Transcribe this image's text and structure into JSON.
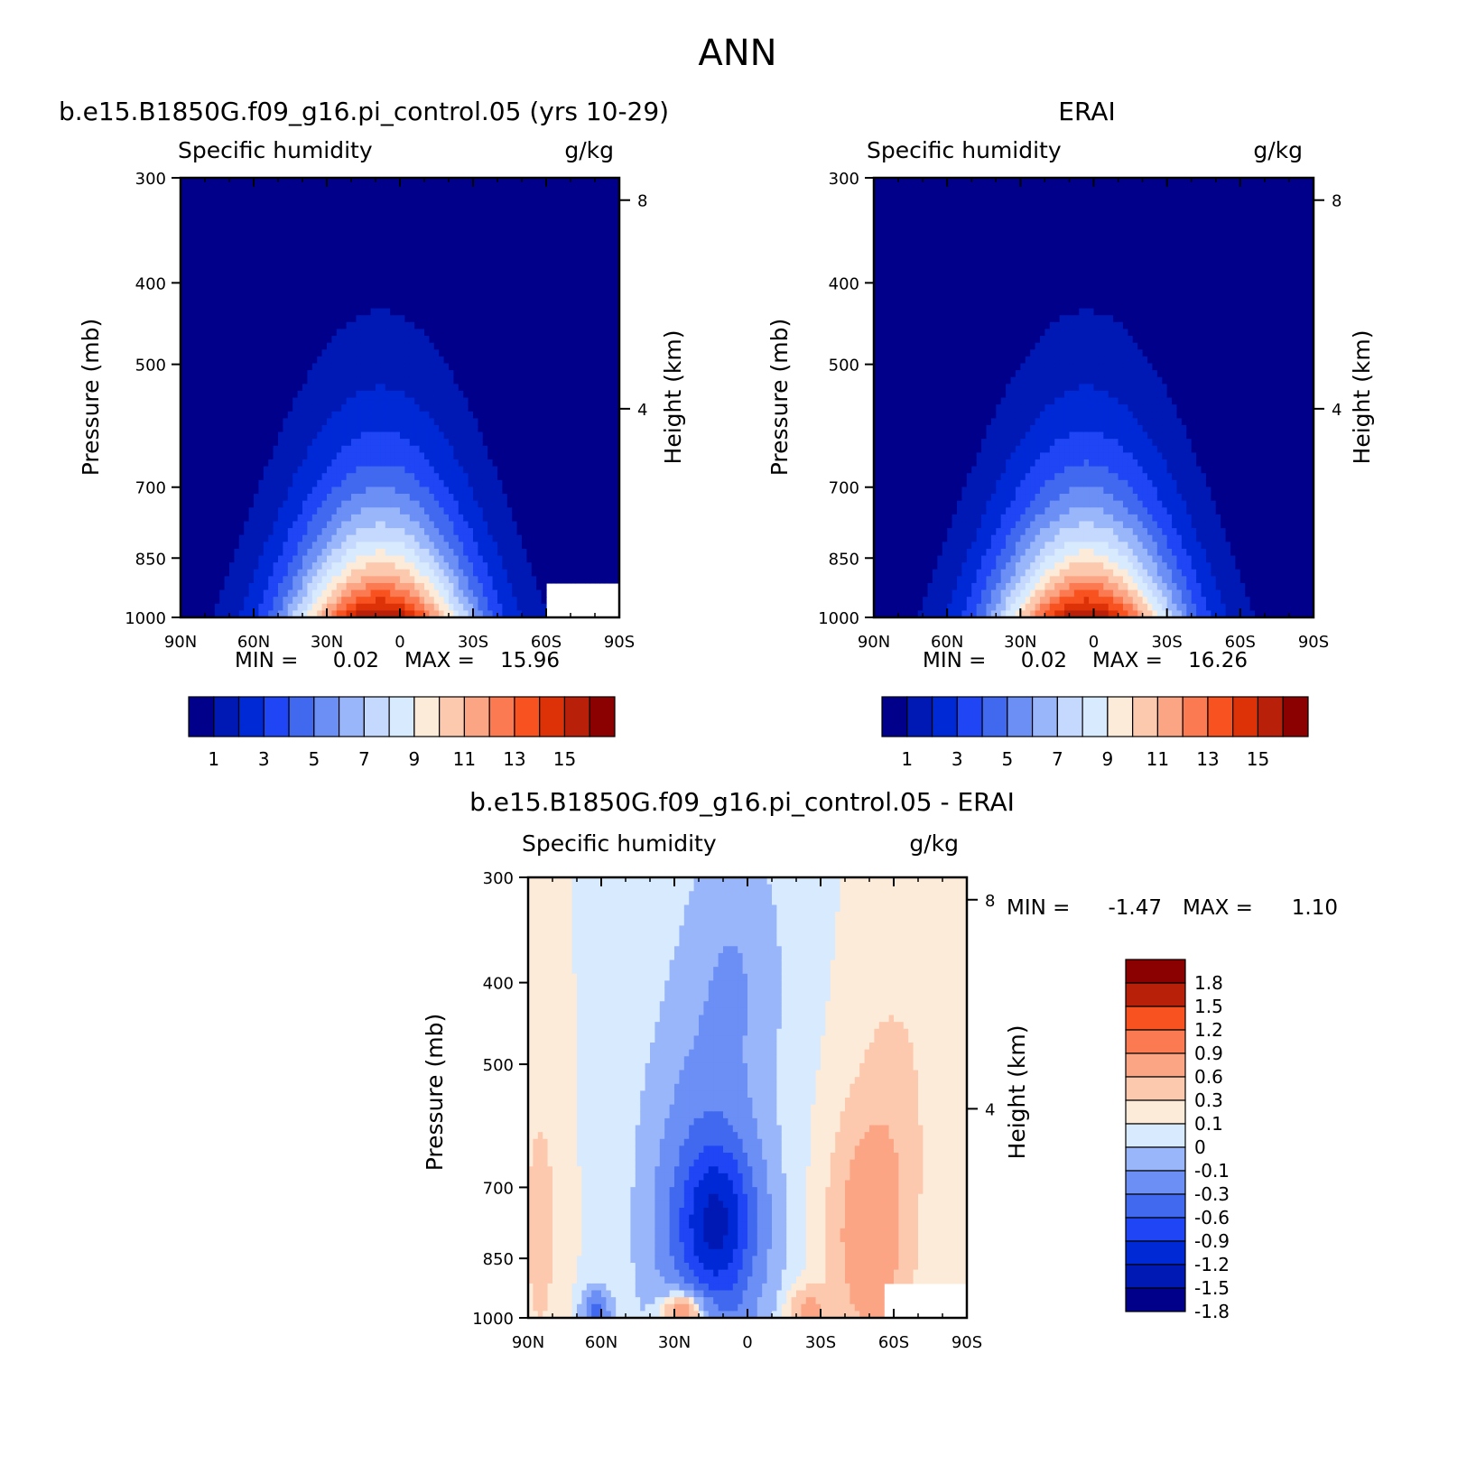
{
  "main_title": "ANN",
  "colors": {
    "abs_levels": [
      "#00008b",
      "#0018b4",
      "#0029d6",
      "#1f45f5",
      "#4169f0",
      "#6b8ff5",
      "#9ab6fb",
      "#c5d8fd",
      "#d8eafd",
      "#fdebd9",
      "#fdc9ae",
      "#fca585",
      "#fb7a51",
      "#f7521f",
      "#dd3208",
      "#b8200a",
      "#8b0000"
    ],
    "diff_levels": [
      "#00008b",
      "#0018b4",
      "#0029d6",
      "#1f45f5",
      "#4169f0",
      "#6b8ff5",
      "#9ab6fb",
      "#d8eafd",
      "#fdebd9",
      "#fdc9ae",
      "#fca585",
      "#fb7a51",
      "#f7521f",
      "#b8200a",
      "#8b0000"
    ]
  },
  "chart_data": [
    {
      "id": "model",
      "type": "heatmap",
      "title": "b.e15.B1850G.f09_g16.pi_control.05 (yrs 10-29)",
      "left_label": "Specific humidity",
      "right_label": "g/kg",
      "xlabel": "",
      "ylabel": "Pressure (mb)",
      "y2label": "Height (km)",
      "xticks": [
        "90N",
        "60N",
        "30N",
        "0",
        "30S",
        "60S",
        "90S"
      ],
      "xlim": [
        90,
        -90
      ],
      "yticks": [
        300,
        400,
        500,
        700,
        850,
        1000
      ],
      "ylim": [
        1000,
        300
      ],
      "yscale": "log",
      "y2ticks": [
        4,
        8
      ],
      "min_label": "MIN =",
      "min_value": "0.02",
      "max_label": "MAX =",
      "max_value": "15.96",
      "levels": [
        0,
        1,
        2,
        3,
        4,
        5,
        6,
        7,
        8,
        9,
        10,
        11,
        12,
        13,
        14,
        15,
        16
      ],
      "colorbar_labels": [
        "1",
        "3",
        "5",
        "7",
        "9",
        "11",
        "13",
        "15"
      ],
      "max_center_lat": 8,
      "peak_at_surface": 15.96,
      "missing_region": "60S-90S below 900 mb"
    },
    {
      "id": "obs",
      "type": "heatmap",
      "title": "ERAI",
      "left_label": "Specific humidity",
      "right_label": "g/kg",
      "xlabel": "",
      "ylabel": "Pressure (mb)",
      "y2label": "Height (km)",
      "xticks": [
        "90N",
        "60N",
        "30N",
        "0",
        "30S",
        "60S",
        "90S"
      ],
      "xlim": [
        90,
        -90
      ],
      "yticks": [
        300,
        400,
        500,
        700,
        850,
        1000
      ],
      "ylim": [
        1000,
        300
      ],
      "yscale": "log",
      "y2ticks": [
        4,
        8
      ],
      "min_label": "MIN =",
      "min_value": "0.02",
      "max_label": "MAX =",
      "max_value": "16.26",
      "levels": [
        0,
        1,
        2,
        3,
        4,
        5,
        6,
        7,
        8,
        9,
        10,
        11,
        12,
        13,
        14,
        15,
        16
      ],
      "colorbar_labels": [
        "1",
        "3",
        "5",
        "7",
        "9",
        "11",
        "13",
        "15"
      ],
      "max_center_lat": 3,
      "peak_at_surface": 16.26
    },
    {
      "id": "diff",
      "type": "heatmap",
      "title": "b.e15.B1850G.f09_g16.pi_control.05 - ERAI",
      "left_label": "Specific humidity",
      "right_label": "g/kg",
      "xlabel": "",
      "ylabel": "Pressure (mb)",
      "y2label": "Height (km)",
      "xticks": [
        "90N",
        "60N",
        "30N",
        "0",
        "30S",
        "60S",
        "90S"
      ],
      "xlim": [
        90,
        -90
      ],
      "yticks": [
        300,
        400,
        500,
        700,
        850,
        1000
      ],
      "ylim": [
        1000,
        300
      ],
      "yscale": "log",
      "y2ticks": [
        4,
        8
      ],
      "min_label": "MIN =",
      "min_value": "-1.47",
      "max_label": "MAX =",
      "max_value": "1.10",
      "levels": [
        -1.8,
        -1.5,
        -1.2,
        -0.9,
        -0.6,
        -0.3,
        -0.1,
        0,
        0.1,
        0.3,
        0.6,
        0.9,
        1.2,
        1.5,
        1.8
      ],
      "colorbar_labels": [
        "1.8",
        "1.5",
        "1.2",
        "0.9",
        "0.6",
        "0.3",
        "0.1",
        "0",
        "-0.1",
        "-0.3",
        "-0.6",
        "-0.9",
        "-1.2",
        "-1.5",
        "-1.8"
      ]
    }
  ]
}
